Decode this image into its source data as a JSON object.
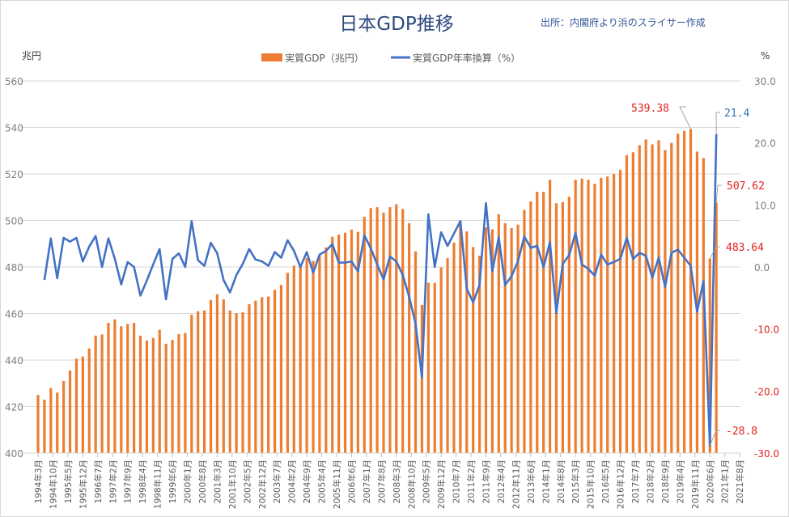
{
  "chart_data": {
    "type": "bar+line",
    "title": "日本GDP推移",
    "source_note": "出所：内閣府より浜のスライサー作成",
    "left_unit": "兆円",
    "right_unit": "%",
    "ylim_left": [
      400,
      560
    ],
    "yticks_left": [
      "560",
      "540",
      "520",
      "500",
      "480",
      "460",
      "440",
      "420",
      "400"
    ],
    "ylim_right": [
      -30,
      30
    ],
    "yticks_right": [
      "30.0",
      "20.0",
      "10.0",
      "0.0",
      "-10.0",
      "-20.0",
      "-30.0"
    ],
    "grid": true,
    "legend": "top-center",
    "x_tick_labels": [
      "1994年3月",
      "1994年10月",
      "1995年5月",
      "1995年12月",
      "1996年7月",
      "1997年2月",
      "1997年9月",
      "1998年4月",
      "1998年11月",
      "1999年6月",
      "2000年1月",
      "2000年8月",
      "2001年3月",
      "2001年10月",
      "2002年5月",
      "2002年12月",
      "2003年7月",
      "2004年2月",
      "2004年9月",
      "2005年4月",
      "2005年11月",
      "2006年6月",
      "2007年1月",
      "2007年8月",
      "2008年3月",
      "2008年10月",
      "2009年5月",
      "2009年12月",
      "2010年7月",
      "2011年2月",
      "2011年9月",
      "2012年4月",
      "2012年11月",
      "2013年6月",
      "2014年1月",
      "2014年8月",
      "2015年3月",
      "2015年10月",
      "2016年5月",
      "2016年12月",
      "2017年7月",
      "2018年2月",
      "2018年9月",
      "2019年4月",
      "2019年11月",
      "2020年6月",
      "2021年1月",
      "2021年8月"
    ],
    "x": [
      "1994-03",
      "1994-06",
      "1994-09",
      "1994-12",
      "1995-03",
      "1995-06",
      "1995-09",
      "1995-12",
      "1996-03",
      "1996-06",
      "1996-09",
      "1996-12",
      "1997-03",
      "1997-06",
      "1997-09",
      "1997-12",
      "1998-03",
      "1998-06",
      "1998-09",
      "1998-12",
      "1999-03",
      "1999-06",
      "1999-09",
      "1999-12",
      "2000-03",
      "2000-06",
      "2000-09",
      "2000-12",
      "2001-03",
      "2001-06",
      "2001-09",
      "2001-12",
      "2002-03",
      "2002-06",
      "2002-09",
      "2002-12",
      "2003-03",
      "2003-06",
      "2003-09",
      "2003-12",
      "2004-03",
      "2004-06",
      "2004-09",
      "2004-12",
      "2005-03",
      "2005-06",
      "2005-09",
      "2005-12",
      "2006-03",
      "2006-06",
      "2006-09",
      "2006-12",
      "2007-03",
      "2007-06",
      "2007-09",
      "2007-12",
      "2008-03",
      "2008-06",
      "2008-09",
      "2008-12",
      "2009-03",
      "2009-06",
      "2009-09",
      "2009-12",
      "2010-03",
      "2010-06",
      "2010-09",
      "2010-12",
      "2011-03",
      "2011-06",
      "2011-09",
      "2011-12",
      "2012-03",
      "2012-06",
      "2012-09",
      "2012-12",
      "2013-03",
      "2013-06",
      "2013-09",
      "2013-12",
      "2014-03",
      "2014-06",
      "2014-09",
      "2014-12",
      "2015-03",
      "2015-06",
      "2015-09",
      "2015-12",
      "2016-03",
      "2016-06",
      "2016-09",
      "2016-12",
      "2017-03",
      "2017-06",
      "2017-09",
      "2017-12",
      "2018-03",
      "2018-06",
      "2018-09",
      "2018-12",
      "2019-03",
      "2019-06",
      "2019-09",
      "2019-12",
      "2020-03",
      "2020-06",
      "2020-09"
    ],
    "series": [
      {
        "name": "実質GDP（兆円）",
        "type": "bar",
        "axis": "left",
        "color": "#ed7d31",
        "values": [
          425,
          423,
          428,
          426,
          431,
          435.5,
          440.6,
          441.5,
          445,
          450.5,
          451,
          456,
          457.5,
          454.5,
          455.5,
          456,
          450.5,
          448.4,
          449.5,
          453,
          447,
          448.7,
          451.2,
          451.6,
          459.5,
          461,
          461.3,
          465.8,
          468.3,
          466.1,
          461.3,
          460.1,
          460.6,
          464,
          465.5,
          467,
          467.3,
          470.2,
          472.3,
          477.5,
          480.6,
          480.3,
          483.8,
          482.6,
          484.9,
          488.4,
          493,
          493.9,
          494.7,
          496.1,
          495.1,
          501.6,
          505.3,
          505.7,
          503.4,
          505.7,
          507,
          505,
          498.8,
          486.7,
          463.7,
          473.2,
          473.2,
          479.8,
          483.8,
          490.5,
          499.9,
          495.3,
          488.6,
          484.9,
          497,
          496.2,
          502.7,
          498.8,
          496.7,
          498.2,
          504.5,
          508.2,
          512.3,
          512.3,
          517.5,
          507.4,
          507.9,
          510.2,
          517.5,
          518,
          517.5,
          515.8,
          518.3,
          518.9,
          520,
          521.8,
          528.1,
          529.3,
          532.4,
          534.8,
          532.7,
          534.5,
          530.3,
          533.3,
          537.3,
          538.5,
          539.38,
          529.6,
          526.9,
          483.64,
          507.62
        ]
      },
      {
        "name": "実質GDP年率換算（%）",
        "type": "line",
        "axis": "right",
        "color": "#4472c4",
        "values": [
          null,
          -2.1,
          4.6,
          -1.8,
          4.7,
          4.1,
          4.7,
          0.9,
          3.3,
          5.0,
          0.0,
          4.6,
          1.3,
          -2.8,
          0.8,
          0.0,
          -4.6,
          -2.2,
          0.4,
          2.9,
          -5.2,
          1.3,
          2.2,
          0.0,
          7.4,
          1.1,
          0.2,
          3.9,
          2.2,
          -2.1,
          -4.1,
          -1.3,
          0.5,
          2.9,
          1.2,
          0.9,
          0.2,
          2.4,
          1.5,
          4.3,
          2.6,
          0.0,
          2.4,
          -0.9,
          2.0,
          2.6,
          3.7,
          0.7,
          0.7,
          0.9,
          -0.7,
          5.1,
          3.0,
          0.4,
          -2.0,
          1.7,
          0.9,
          -1.3,
          -4.8,
          -9.1,
          -17.8,
          8.5,
          0.0,
          5.6,
          3.4,
          5.4,
          7.4,
          -3.5,
          -5.7,
          -2.9,
          10.3,
          -0.7,
          4.8,
          -2.9,
          -1.5,
          0.9,
          4.9,
          3.1,
          3.4,
          0.0,
          4.0,
          -7.4,
          0.5,
          1.9,
          5.5,
          0.4,
          -0.3,
          -1.4,
          2.0,
          0.4,
          0.8,
          1.3,
          4.7,
          1.3,
          2.3,
          1.8,
          -1.7,
          1.5,
          -3.2,
          2.3,
          2.8,
          1.5,
          0.2,
          -7.2,
          -2.3,
          -28.8,
          21.4
        ]
      }
    ],
    "annotations": [
      {
        "text": "539.38",
        "series": 0,
        "index": 102,
        "color": "#e3211c"
      },
      {
        "text": "21.4",
        "series": 1,
        "index": 106,
        "color": "#2e75b6"
      },
      {
        "text": "507.62",
        "series": 0,
        "index": 106,
        "color": "#e3211c"
      },
      {
        "text": "483.64",
        "series": 0,
        "index": 105,
        "color": "#e3211c"
      },
      {
        "text": "-28.8",
        "series": 1,
        "index": 105,
        "color": "#e3211c"
      }
    ],
    "negative_right_tick_color": "#e3211c"
  }
}
